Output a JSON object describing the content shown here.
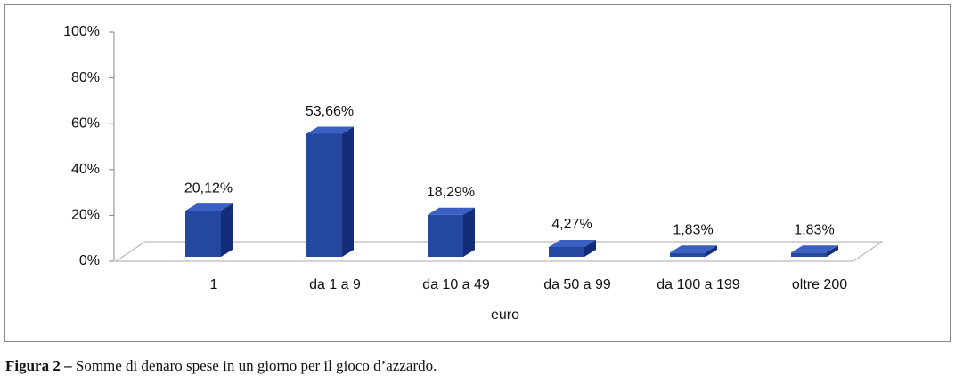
{
  "chart_data": {
    "type": "bar",
    "categories": [
      "1",
      "da 1 a 9",
      "da 10 a 49",
      "da 50 a 99",
      "da 100 a 199",
      "oltre 200"
    ],
    "values": [
      20.12,
      53.66,
      18.29,
      4.27,
      1.83,
      1.83
    ],
    "value_labels": [
      "20,12%",
      "53,66%",
      "18,29%",
      "4,27%",
      "1,83%",
      "1,83%"
    ],
    "color": "#2448a0",
    "ylim": [
      0,
      100
    ],
    "yticks": [
      {
        "value": 0,
        "label": "0%"
      },
      {
        "value": 20,
        "label": "20%"
      },
      {
        "value": 40,
        "label": "40%"
      },
      {
        "value": 60,
        "label": "60%"
      },
      {
        "value": 80,
        "label": "80%"
      },
      {
        "value": 100,
        "label": "100%"
      }
    ],
    "xlabel": "euro",
    "caption_label": "Figura 2 –",
    "caption": "Somme di denaro spese in un giorno per il gioco d’azzardo."
  }
}
